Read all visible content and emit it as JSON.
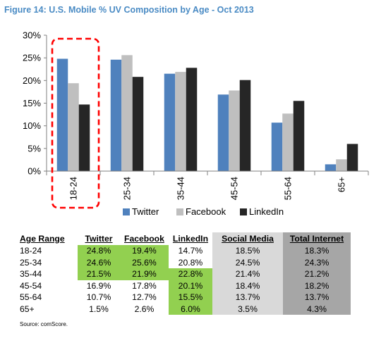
{
  "title": "Figure 14: U.S. Mobile % UV Composition by Age - Oct 2013",
  "colors": {
    "title": "#4a8bc4",
    "twitter": "#4f81bd",
    "facebook": "#bfbfbf",
    "linkedin": "#262626",
    "highlight_box": "#ff0000",
    "table_highlight": "#92d050",
    "social_media_column": "#d9d9d9",
    "total_internet_column": "#a6a6a6"
  },
  "chart_data": {
    "type": "bar",
    "categories": [
      "18-24",
      "25-34",
      "35-44",
      "45-54",
      "55-64",
      "65+"
    ],
    "series": [
      {
        "name": "Twitter",
        "values": [
          24.8,
          24.6,
          21.5,
          16.9,
          10.7,
          1.5
        ]
      },
      {
        "name": "Facebook",
        "values": [
          19.4,
          25.6,
          21.9,
          17.8,
          12.7,
          2.6
        ]
      },
      {
        "name": "LinkedIn",
        "values": [
          14.7,
          20.8,
          22.8,
          20.1,
          15.5,
          6.0
        ]
      }
    ],
    "ylim": [
      0,
      30
    ],
    "yticks": [
      "0%",
      "5%",
      "10%",
      "15%",
      "20%",
      "25%",
      "30%"
    ],
    "ytick_values": [
      0,
      5,
      10,
      15,
      20,
      25,
      30
    ],
    "grid": false,
    "legend_position": "bottom",
    "highlighted_category": "18-24"
  },
  "table": {
    "headers": [
      "Age Range",
      "Twitter",
      "Facebook",
      "LinkedIn",
      "Social Media",
      "Total Internet"
    ],
    "rows": [
      [
        "18-24",
        "24.8%",
        "19.4%",
        "14.7%",
        "18.5%",
        "18.3%"
      ],
      [
        "25-34",
        "24.6%",
        "25.6%",
        "20.8%",
        "24.5%",
        "24.3%"
      ],
      [
        "35-44",
        "21.5%",
        "21.9%",
        "22.8%",
        "21.4%",
        "21.2%"
      ],
      [
        "45-54",
        "16.9%",
        "17.8%",
        "20.1%",
        "18.4%",
        "18.2%"
      ],
      [
        "55-64",
        "10.7%",
        "12.7%",
        "15.5%",
        "13.7%",
        "13.7%"
      ],
      [
        "65+",
        "1.5%",
        "2.6%",
        "6.0%",
        "3.5%",
        "4.3%"
      ]
    ],
    "highlighted_cells": [
      [
        0,
        1
      ],
      [
        0,
        2
      ],
      [
        1,
        1
      ],
      [
        1,
        2
      ],
      [
        2,
        1
      ],
      [
        2,
        2
      ],
      [
        2,
        3
      ],
      [
        3,
        3
      ],
      [
        4,
        3
      ],
      [
        5,
        3
      ]
    ]
  },
  "source": "Source: comScore."
}
